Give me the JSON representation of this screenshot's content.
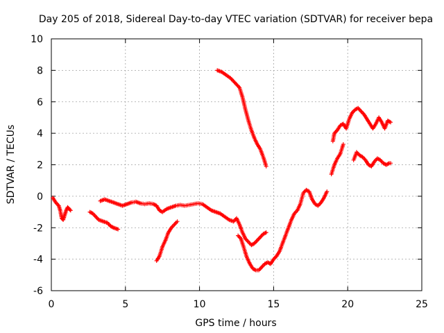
{
  "chart_data": {
    "type": "scatter",
    "title": "Day 205 of 2018, Sidereal Day-to-day VTEC variation (SDTVAR) for receiver bepa",
    "xlabel": "GPS time / hours",
    "ylabel": "SDTVAR / TECUs",
    "xlim": [
      0,
      25
    ],
    "ylim": [
      -6,
      10
    ],
    "xticks": [
      0,
      5,
      10,
      15,
      20,
      25
    ],
    "yticks": [
      -6,
      -4,
      -2,
      0,
      2,
      4,
      6,
      8,
      10
    ],
    "grid": true,
    "marker": "+",
    "color": "#ff0000",
    "segments": [
      [
        [
          0.1,
          -0.1
        ],
        [
          0.3,
          -0.4
        ],
        [
          0.5,
          -0.6
        ],
        [
          0.6,
          -0.9
        ],
        [
          0.7,
          -1.4
        ],
        [
          0.8,
          -1.5
        ],
        [
          0.9,
          -1.2
        ],
        [
          1.0,
          -0.9
        ],
        [
          1.1,
          -0.7
        ],
        [
          1.2,
          -0.8
        ],
        [
          1.3,
          -0.9
        ]
      ],
      [
        [
          2.6,
          -1.0
        ],
        [
          2.8,
          -1.1
        ],
        [
          3.0,
          -1.3
        ],
        [
          3.2,
          -1.5
        ],
        [
          3.5,
          -1.6
        ],
        [
          3.8,
          -1.7
        ],
        [
          4.0,
          -1.9
        ],
        [
          4.2,
          -2.0
        ],
        [
          4.5,
          -2.1
        ]
      ],
      [
        [
          3.3,
          -0.3
        ],
        [
          3.6,
          -0.2
        ],
        [
          3.9,
          -0.3
        ],
        [
          4.2,
          -0.4
        ],
        [
          4.5,
          -0.5
        ],
        [
          4.8,
          -0.6
        ],
        [
          5.1,
          -0.5
        ],
        [
          5.4,
          -0.4
        ],
        [
          5.7,
          -0.35
        ],
        [
          6.0,
          -0.45
        ],
        [
          6.3,
          -0.5
        ],
        [
          6.6,
          -0.45
        ],
        [
          6.9,
          -0.5
        ],
        [
          7.1,
          -0.6
        ],
        [
          7.3,
          -0.9
        ],
        [
          7.5,
          -1.0
        ],
        [
          7.8,
          -0.8
        ],
        [
          8.1,
          -0.7
        ],
        [
          8.4,
          -0.6
        ],
        [
          8.7,
          -0.55
        ],
        [
          9.0,
          -0.6
        ],
        [
          9.3,
          -0.55
        ],
        [
          9.6,
          -0.5
        ],
        [
          9.9,
          -0.45
        ],
        [
          10.2,
          -0.5
        ],
        [
          10.5,
          -0.7
        ],
        [
          10.8,
          -0.9
        ],
        [
          11.1,
          -1.0
        ],
        [
          11.4,
          -1.1
        ],
        [
          11.7,
          -1.3
        ],
        [
          12.0,
          -1.5
        ],
        [
          12.3,
          -1.6
        ],
        [
          12.5,
          -1.4
        ],
        [
          12.7,
          -1.8
        ],
        [
          12.9,
          -2.3
        ],
        [
          13.1,
          -2.7
        ],
        [
          13.3,
          -2.9
        ],
        [
          13.5,
          -3.1
        ],
        [
          13.7,
          -3.0
        ],
        [
          13.9,
          -2.8
        ],
        [
          14.1,
          -2.6
        ],
        [
          14.3,
          -2.4
        ],
        [
          14.5,
          -2.3
        ]
      ],
      [
        [
          7.1,
          -4.1
        ],
        [
          7.3,
          -3.8
        ],
        [
          7.5,
          -3.2
        ],
        [
          7.7,
          -2.8
        ],
        [
          7.9,
          -2.3
        ],
        [
          8.1,
          -2.0
        ],
        [
          8.3,
          -1.8
        ],
        [
          8.5,
          -1.6
        ]
      ],
      [
        [
          11.2,
          8.0
        ],
        [
          11.5,
          7.9
        ],
        [
          11.8,
          7.7
        ],
        [
          12.1,
          7.5
        ],
        [
          12.4,
          7.2
        ],
        [
          12.7,
          6.9
        ],
        [
          12.9,
          6.3
        ],
        [
          13.1,
          5.5
        ],
        [
          13.3,
          4.8
        ],
        [
          13.5,
          4.2
        ],
        [
          13.7,
          3.7
        ],
        [
          13.9,
          3.3
        ],
        [
          14.1,
          3.0
        ],
        [
          14.3,
          2.5
        ],
        [
          14.5,
          1.9
        ]
      ],
      [
        [
          12.6,
          -2.5
        ],
        [
          12.8,
          -2.7
        ],
        [
          13.0,
          -3.3
        ],
        [
          13.2,
          -3.9
        ],
        [
          13.4,
          -4.3
        ],
        [
          13.6,
          -4.6
        ],
        [
          13.8,
          -4.7
        ],
        [
          14.0,
          -4.7
        ],
        [
          14.2,
          -4.5
        ],
        [
          14.4,
          -4.3
        ],
        [
          14.6,
          -4.2
        ],
        [
          14.8,
          -4.3
        ],
        [
          15.0,
          -4.0
        ],
        [
          15.2,
          -3.8
        ],
        [
          15.4,
          -3.5
        ],
        [
          15.6,
          -3.0
        ],
        [
          15.8,
          -2.5
        ],
        [
          16.0,
          -2.0
        ],
        [
          16.2,
          -1.5
        ],
        [
          16.4,
          -1.1
        ],
        [
          16.6,
          -0.9
        ],
        [
          16.8,
          -0.5
        ],
        [
          17.0,
          0.2
        ],
        [
          17.2,
          0.4
        ],
        [
          17.4,
          0.3
        ],
        [
          17.6,
          -0.2
        ],
        [
          17.8,
          -0.5
        ],
        [
          18.0,
          -0.6
        ],
        [
          18.2,
          -0.4
        ],
        [
          18.4,
          -0.1
        ],
        [
          18.6,
          0.3
        ]
      ],
      [
        [
          18.9,
          1.4
        ],
        [
          19.1,
          2.0
        ],
        [
          19.3,
          2.4
        ],
        [
          19.5,
          2.7
        ],
        [
          19.7,
          3.3
        ]
      ],
      [
        [
          19.0,
          3.5
        ],
        [
          19.1,
          4.0
        ],
        [
          19.3,
          4.2
        ],
        [
          19.5,
          4.5
        ],
        [
          19.7,
          4.6
        ],
        [
          19.9,
          4.3
        ],
        [
          20.1,
          4.9
        ],
        [
          20.3,
          5.3
        ],
        [
          20.5,
          5.5
        ],
        [
          20.7,
          5.6
        ],
        [
          20.9,
          5.4
        ],
        [
          21.1,
          5.2
        ],
        [
          21.3,
          4.9
        ],
        [
          21.5,
          4.6
        ],
        [
          21.7,
          4.3
        ],
        [
          21.9,
          4.6
        ],
        [
          22.1,
          5.0
        ],
        [
          22.3,
          4.7
        ],
        [
          22.5,
          4.3
        ],
        [
          22.7,
          4.8
        ],
        [
          22.9,
          4.7
        ]
      ],
      [
        [
          20.4,
          2.3
        ],
        [
          20.6,
          2.8
        ],
        [
          20.8,
          2.6
        ],
        [
          21.0,
          2.5
        ],
        [
          21.2,
          2.3
        ],
        [
          21.4,
          2.0
        ],
        [
          21.6,
          1.9
        ],
        [
          21.8,
          2.2
        ],
        [
          22.0,
          2.4
        ],
        [
          22.2,
          2.3
        ],
        [
          22.4,
          2.1
        ],
        [
          22.6,
          2.0
        ],
        [
          22.8,
          2.1
        ],
        [
          22.9,
          2.1
        ]
      ]
    ]
  }
}
